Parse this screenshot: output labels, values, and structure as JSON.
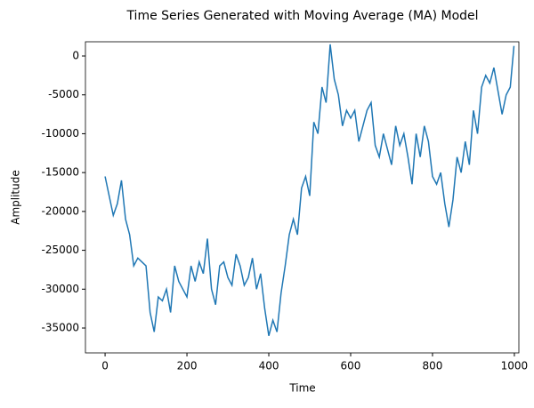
{
  "chart_data": {
    "type": "line",
    "title": "Time Series Generated with Moving Average (MA) Model",
    "x_label": "Time",
    "y_label": "Amplitude",
    "x": [
      0,
      10,
      20,
      30,
      40,
      50,
      60,
      70,
      80,
      90,
      100,
      110,
      120,
      130,
      140,
      150,
      160,
      170,
      180,
      190,
      200,
      210,
      220,
      230,
      240,
      250,
      260,
      270,
      280,
      290,
      300,
      310,
      320,
      330,
      340,
      350,
      360,
      370,
      380,
      390,
      400,
      410,
      420,
      430,
      440,
      450,
      460,
      470,
      480,
      490,
      500,
      510,
      520,
      530,
      540,
      550,
      560,
      570,
      580,
      590,
      600,
      610,
      620,
      630,
      640,
      650,
      660,
      670,
      680,
      690,
      700,
      710,
      720,
      730,
      740,
      750,
      760,
      770,
      780,
      790,
      800,
      810,
      820,
      830,
      840,
      850,
      860,
      870,
      880,
      890,
      900,
      910,
      920,
      930,
      940,
      950,
      960,
      970,
      980,
      990,
      999
    ],
    "series": [
      {
        "name": "Amplitude",
        "color": "#1f77b4",
        "values": [
          -15500,
          -18000,
          -20500,
          -19000,
          -16000,
          -21000,
          -23000,
          -27000,
          -26000,
          -26500,
          -27000,
          -33000,
          -35500,
          -31000,
          -31500,
          -30000,
          -33000,
          -27000,
          -29000,
          -30000,
          -31000,
          -27000,
          -29000,
          -26500,
          -28000,
          -23500,
          -30000,
          -32000,
          -27000,
          -26500,
          -28500,
          -29500,
          -25500,
          -27000,
          -29500,
          -28500,
          -26000,
          -30000,
          -28000,
          -32500,
          -36000,
          -34000,
          -35500,
          -30500,
          -27000,
          -23000,
          -21000,
          -23000,
          -17000,
          -15500,
          -18000,
          -8500,
          -10000,
          -4000,
          -6000,
          1500,
          -3000,
          -5000,
          -9000,
          -7000,
          -8000,
          -7000,
          -11000,
          -9000,
          -7000,
          -6000,
          -11500,
          -13000,
          -10000,
          -12000,
          -14000,
          -9000,
          -11500,
          -10000,
          -13000,
          -16500,
          -10000,
          -13000,
          -9000,
          -11000,
          -15500,
          -16500,
          -15000,
          -19000,
          -22000,
          -18500,
          -13000,
          -15000,
          -11000,
          -14000,
          -7000,
          -10000,
          -4000,
          -2500,
          -3500,
          -1500,
          -4500,
          -7500,
          -5000,
          -4000,
          1300
        ]
      }
    ],
    "xlim": [
      -48,
      1011
    ],
    "ylim": [
      -38200,
      1830
    ],
    "xticks": [
      0,
      200,
      400,
      600,
      800,
      1000
    ],
    "yticks": [
      0,
      -5000,
      -10000,
      -15000,
      -20000,
      -25000,
      -30000,
      -35000
    ]
  }
}
